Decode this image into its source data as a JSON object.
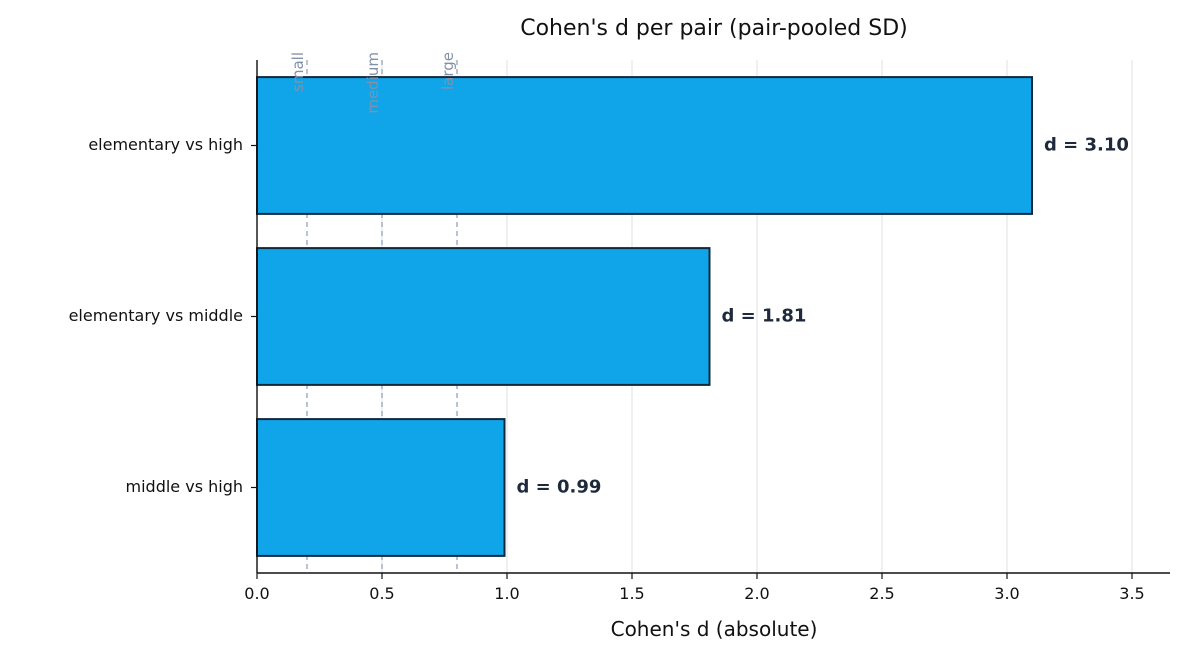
{
  "chart_data": {
    "type": "bar",
    "orientation": "horizontal",
    "title": "Cohen's d per pair (pair-pooled SD)",
    "xlabel": "Cohen's d (absolute)",
    "ylabel": "",
    "xlim": [
      0,
      3.65
    ],
    "xticks": [
      0.0,
      0.5,
      1.0,
      1.5,
      2.0,
      2.5,
      3.0,
      3.5
    ],
    "xtick_labels": [
      "0.0",
      "0.5",
      "1.0",
      "1.5",
      "2.0",
      "2.5",
      "3.0",
      "3.5"
    ],
    "categories": [
      "elementary vs high",
      "elementary vs middle",
      "middle vs high"
    ],
    "values": [
      3.1,
      1.81,
      0.99
    ],
    "data_labels": [
      "d = 3.10",
      "d = 1.81",
      "d = 0.99"
    ],
    "reference_lines": [
      {
        "label": "small",
        "value": 0.2
      },
      {
        "label": "medium",
        "value": 0.5
      },
      {
        "label": "large",
        "value": 0.8
      }
    ],
    "grid": "x",
    "legend": "none",
    "colors": {
      "bar_fill": "#10a5e9",
      "bar_edge": "#0f2a3d",
      "data_label": "#1e293b",
      "reference_line": "#94a3b8",
      "reference_label": "#8391a8",
      "grid": "#e5e7eb",
      "axis": "#111111"
    }
  }
}
